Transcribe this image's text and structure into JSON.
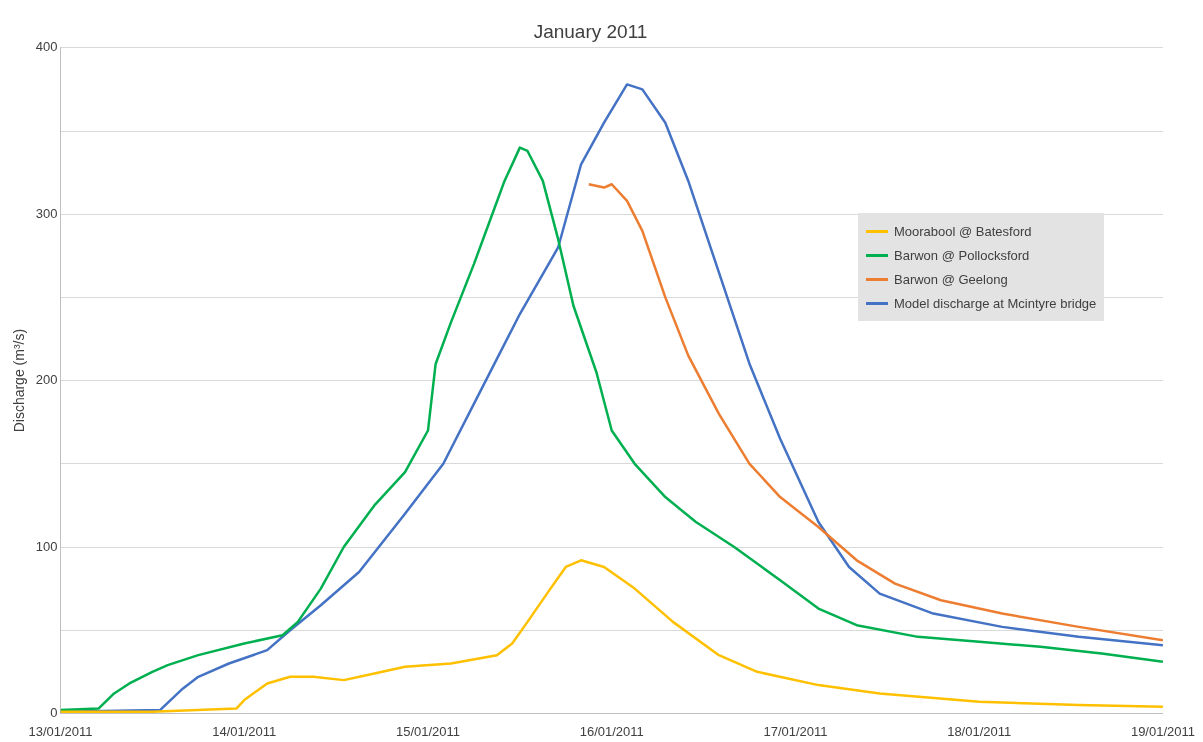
{
  "chart_data": {
    "type": "line",
    "title": "January 2011",
    "ylabel": "Discharge (m³/s)",
    "xlim": [
      "2011-01-13",
      "2011-01-19"
    ],
    "xticks": [
      {
        "value": "2011-01-13",
        "label": "13/01/2011"
      },
      {
        "value": "2011-01-14",
        "label": "14/01/2011"
      },
      {
        "value": "2011-01-15",
        "label": "15/01/2011"
      },
      {
        "value": "2011-01-16",
        "label": "16/01/2011"
      },
      {
        "value": "2011-01-17",
        "label": "17/01/2011"
      },
      {
        "value": "2011-01-18",
        "label": "18/01/2011"
      },
      {
        "value": "2011-01-19",
        "label": "19/01/2011"
      }
    ],
    "ylim": [
      0,
      400
    ],
    "yticks": [
      0,
      {
        "value": 50,
        "label": null
      },
      100,
      {
        "value": 150,
        "label": null
      },
      200,
      {
        "value": 250,
        "label": null
      },
      300,
      {
        "value": 350,
        "label": null
      },
      400
    ],
    "grid": "y",
    "legend": "right",
    "marker": "none",
    "line_style": "solid",
    "series": [
      {
        "name": "Moorabool @ Batesford",
        "color": "#ffc000",
        "x": [
          "2011-01-13T00:00",
          "2011-01-13T12:00",
          "2011-01-13T23:00",
          "2011-01-14T00:00",
          "2011-01-14T03:00",
          "2011-01-14T06:00",
          "2011-01-14T09:00",
          "2011-01-14T13:00",
          "2011-01-14T17:00",
          "2011-01-14T21:00",
          "2011-01-15T03:00",
          "2011-01-15T09:00",
          "2011-01-15T11:00",
          "2011-01-15T13:00",
          "2011-01-15T16:00",
          "2011-01-15T18:00",
          "2011-01-15T20:00",
          "2011-01-15T23:00",
          "2011-01-16T03:00",
          "2011-01-16T08:00",
          "2011-01-16T14:00",
          "2011-01-16T19:00",
          "2011-01-17T03:00",
          "2011-01-17T11:00",
          "2011-01-18T00:00",
          "2011-01-18T13:00",
          "2011-01-19T00:00"
        ],
        "values": [
          1,
          1,
          3,
          8,
          18,
          22,
          22,
          20,
          24,
          28,
          30,
          35,
          42,
          55,
          75,
          88,
          92,
          88,
          75,
          55,
          35,
          25,
          17,
          12,
          7,
          5,
          4
        ]
      },
      {
        "name": "Barwon @ Pollocksford",
        "color": "#00b050",
        "x": [
          "2011-01-13T00:00",
          "2011-01-13T05:00",
          "2011-01-13T07:00",
          "2011-01-13T09:00",
          "2011-01-13T12:00",
          "2011-01-13T14:00",
          "2011-01-13T18:00",
          "2011-01-14T00:00",
          "2011-01-14T05:00",
          "2011-01-14T07:00",
          "2011-01-14T10:00",
          "2011-01-14T13:00",
          "2011-01-14T17:00",
          "2011-01-14T21:00",
          "2011-01-15T00:00",
          "2011-01-15T01:00",
          "2011-01-15T03:00",
          "2011-01-15T06:00",
          "2011-01-15T08:00",
          "2011-01-15T10:00",
          "2011-01-15T12:00",
          "2011-01-15T13:00",
          "2011-01-15T15:00",
          "2011-01-15T17:00",
          "2011-01-15T19:00",
          "2011-01-15T22:00",
          "2011-01-16T00:00",
          "2011-01-16T03:00",
          "2011-01-16T07:00",
          "2011-01-16T11:00",
          "2011-01-16T16:00",
          "2011-01-16T22:00",
          "2011-01-17T03:00",
          "2011-01-17T08:00",
          "2011-01-17T16:00",
          "2011-01-18T00:00",
          "2011-01-18T08:00",
          "2011-01-18T16:00",
          "2011-01-19T00:00"
        ],
        "values": [
          2,
          3,
          12,
          18,
          25,
          29,
          35,
          42,
          47,
          55,
          75,
          100,
          125,
          145,
          170,
          210,
          235,
          270,
          295,
          320,
          340,
          338,
          320,
          285,
          245,
          205,
          170,
          150,
          130,
          115,
          100,
          80,
          63,
          53,
          46,
          43,
          40,
          36,
          31
        ]
      },
      {
        "name": "Barwon @ Geelong",
        "color": "#ed7d31",
        "x": [
          "2011-01-15T21:00",
          "2011-01-15T23:00",
          "2011-01-16T00:00",
          "2011-01-16T02:00",
          "2011-01-16T04:00",
          "2011-01-16T07:00",
          "2011-01-16T10:00",
          "2011-01-16T14:00",
          "2011-01-16T18:00",
          "2011-01-16T22:00",
          "2011-01-17T03:00",
          "2011-01-17T08:00",
          "2011-01-17T13:00",
          "2011-01-17T19:00",
          "2011-01-18T03:00",
          "2011-01-18T13:00",
          "2011-01-19T00:00"
        ],
        "values": [
          318,
          316,
          318,
          308,
          290,
          250,
          215,
          180,
          150,
          130,
          112,
          92,
          78,
          68,
          60,
          52,
          44
        ]
      },
      {
        "name": "Model discharge at Mcintyre bridge",
        "color": "#4472c4",
        "x": [
          "2011-01-13T00:00",
          "2011-01-13T13:00",
          "2011-01-13T16:00",
          "2011-01-13T18:00",
          "2011-01-13T22:00",
          "2011-01-14T03:00",
          "2011-01-14T06:00",
          "2011-01-14T10:00",
          "2011-01-14T15:00",
          "2011-01-14T21:00",
          "2011-01-15T02:00",
          "2011-01-15T07:00",
          "2011-01-15T12:00",
          "2011-01-15T17:00",
          "2011-01-15T20:00",
          "2011-01-15T23:00",
          "2011-01-16T02:00",
          "2011-01-16T04:00",
          "2011-01-16T07:00",
          "2011-01-16T10:00",
          "2011-01-16T14:00",
          "2011-01-16T18:00",
          "2011-01-16T22:00",
          "2011-01-17T03:00",
          "2011-01-17T07:00",
          "2011-01-17T11:00",
          "2011-01-17T18:00",
          "2011-01-18T03:00",
          "2011-01-18T13:00",
          "2011-01-19T00:00"
        ],
        "values": [
          1,
          2,
          15,
          22,
          30,
          38,
          50,
          65,
          85,
          120,
          150,
          195,
          240,
          280,
          330,
          355,
          378,
          375,
          355,
          320,
          265,
          210,
          165,
          115,
          88,
          72,
          60,
          52,
          46,
          41
        ]
      }
    ]
  }
}
